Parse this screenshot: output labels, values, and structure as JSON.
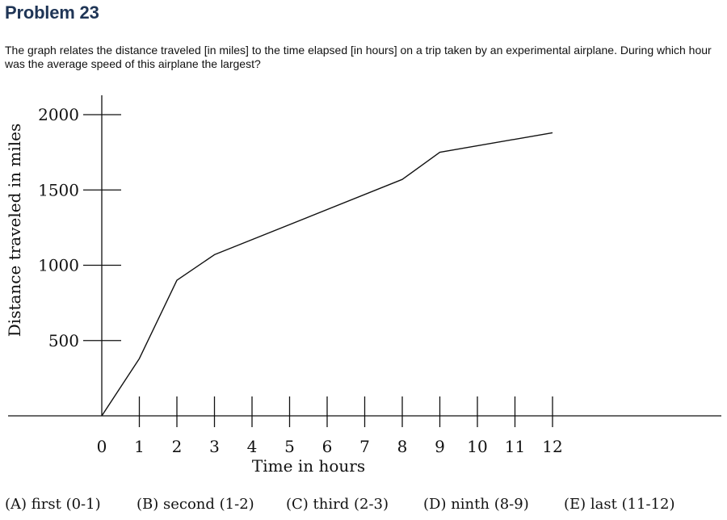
{
  "problem": {
    "title": "Problem 23",
    "question": "The graph relates the distance traveled [in miles] to the time elapsed [in hours] on a trip taken by an experimental airplane. During which hour was the average speed of this airplane the largest?"
  },
  "chart_data": {
    "type": "line",
    "xlabel": "Time in hours",
    "ylabel": "Distance traveled in miles",
    "xlim": [
      0,
      12
    ],
    "ylim": [
      0,
      2000
    ],
    "x_ticks": [
      "0",
      "1",
      "2",
      "3",
      "4",
      "5",
      "6",
      "7",
      "8",
      "9",
      "10",
      "11",
      "12"
    ],
    "y_ticks": [
      "500",
      "1000",
      "1500",
      "2000"
    ],
    "grid": false,
    "series": [
      {
        "x": [
          0,
          1,
          2,
          3,
          8,
          9,
          12
        ],
        "y": [
          0,
          380,
          900,
          1070,
          1570,
          1750,
          1880
        ]
      }
    ]
  },
  "choices": [
    "(A) first (0-1)",
    "(B) second (1-2)",
    "(C) third (2-3)",
    "(D) ninth (8-9)",
    "(E) last (11-12)"
  ]
}
